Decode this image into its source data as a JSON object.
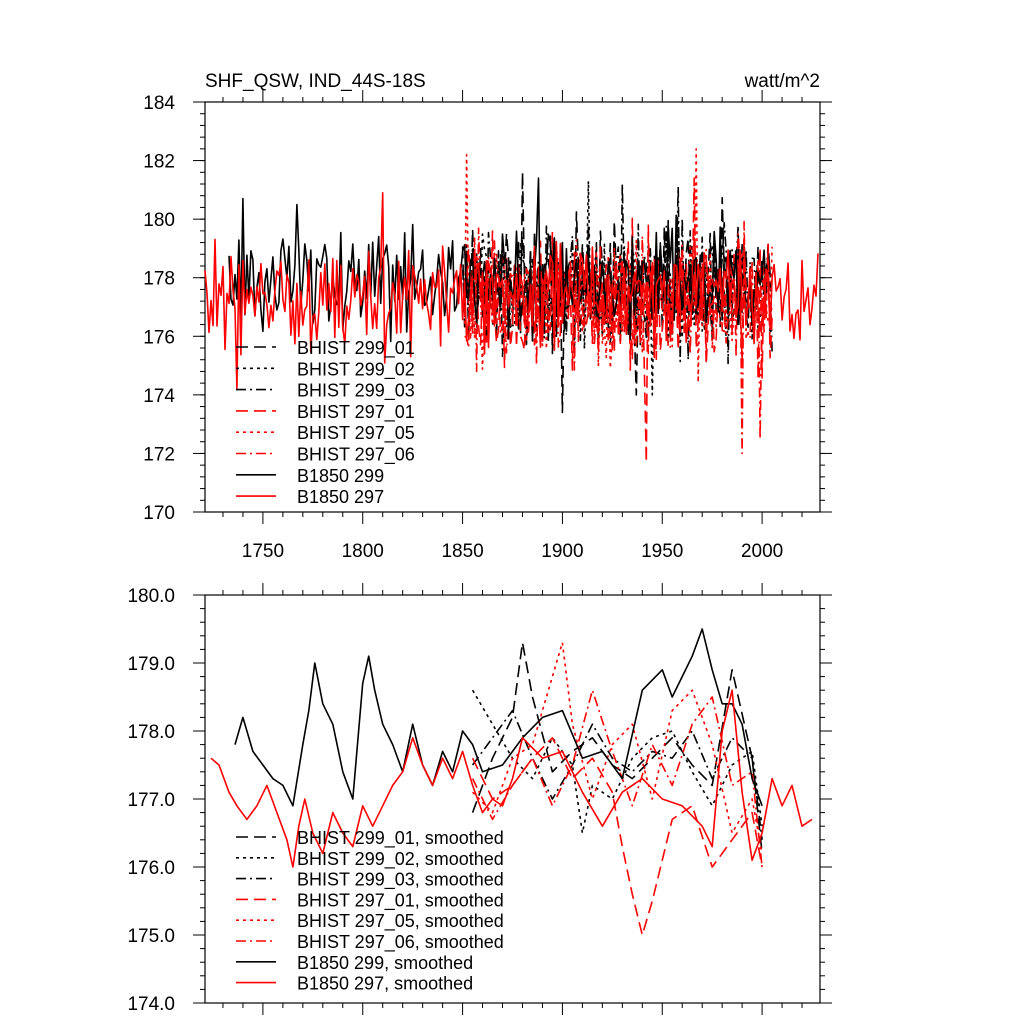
{
  "colors": {
    "black": "#000000",
    "red": "#ff0000"
  },
  "header": {
    "title": "SHF_QSW, IND_44S-18S",
    "units": "watt/m^2"
  },
  "chart_data": [
    {
      "type": "line",
      "title": "SHF_QSW, IND_44S-18S",
      "units": "watt/m^2",
      "xlim": [
        1721,
        2029
      ],
      "ylim": [
        170,
        184
      ],
      "x_ticks": [
        1750,
        1800,
        1850,
        1900,
        1950,
        2000
      ],
      "y_ticks": [
        170,
        172,
        174,
        176,
        178,
        180,
        182,
        184
      ],
      "y_tick_labels": [
        "170",
        "172",
        "174",
        "176",
        "178",
        "180",
        "182",
        "184"
      ],
      "grid": false,
      "legend_position": "bottom-left",
      "series": [
        {
          "name": "BHIST 299_01",
          "color": "#000000",
          "dash": "long-dash",
          "x_start": 1850,
          "x_end": 2005,
          "mean": 177.8,
          "amp": 1.7,
          "seed": 11,
          "extremes": [
            [
              1880,
              181.6
            ],
            [
              1900,
              173.4
            ],
            [
              1937,
              174.0
            ]
          ]
        },
        {
          "name": "BHIST 299_02",
          "color": "#000000",
          "dash": "dot",
          "x_start": 1850,
          "x_end": 2005,
          "mean": 177.7,
          "amp": 1.6,
          "seed": 12,
          "extremes": [
            [
              1913,
              181.3
            ],
            [
              1945,
              174.0
            ]
          ]
        },
        {
          "name": "BHIST 299_03",
          "color": "#000000",
          "dash": "dash-dot",
          "x_start": 1850,
          "x_end": 2005,
          "mean": 177.8,
          "amp": 1.6,
          "seed": 13,
          "extremes": [
            [
              1930,
              181.2
            ],
            [
              1958,
              181.1
            ]
          ]
        },
        {
          "name": "BHIST 297_01",
          "color": "#ff0000",
          "dash": "long-dash",
          "x_start": 1851,
          "x_end": 2005,
          "mean": 177.1,
          "amp": 1.7,
          "seed": 14,
          "extremes": [
            [
              1942,
              171.7
            ],
            [
              1966,
              181.4
            ]
          ]
        },
        {
          "name": "BHIST 297_05",
          "color": "#ff0000",
          "dash": "dot",
          "x_start": 1851,
          "x_end": 2005,
          "mean": 177.3,
          "amp": 1.6,
          "seed": 15,
          "extremes": [
            [
              1852,
              182.2
            ],
            [
              1967,
              182.4
            ]
          ]
        },
        {
          "name": "BHIST 297_06",
          "color": "#ff0000",
          "dash": "dash-dot",
          "x_start": 1851,
          "x_end": 2005,
          "mean": 177.2,
          "amp": 1.6,
          "seed": 16,
          "extremes": [
            [
              1990,
              172.0
            ],
            [
              1999,
              172.5
            ]
          ]
        },
        {
          "name": "B1850 299",
          "color": "#000000",
          "dash": "solid",
          "x_start": 1733,
          "x_end": 2002,
          "mean": 177.9,
          "amp": 1.4,
          "seed": 17,
          "extremes": [
            [
              1740,
              180.7
            ],
            [
              1767,
              180.5
            ],
            [
              1888,
              181.4
            ]
          ]
        },
        {
          "name": "B1850 297",
          "color": "#ff0000",
          "dash": "solid",
          "x_start": 1721,
          "x_end": 2028,
          "mean": 177.3,
          "amp": 1.3,
          "seed": 18,
          "extremes": [
            [
              1810,
              180.9
            ],
            [
              1737,
              174.2
            ]
          ]
        }
      ]
    },
    {
      "type": "line",
      "xlim": [
        1721,
        2029
      ],
      "ylim": [
        174.0,
        180.0
      ],
      "x_ticks": [
        1750,
        1800,
        1850,
        1900,
        1950,
        2000
      ],
      "y_ticks": [
        174.0,
        175.0,
        176.0,
        177.0,
        178.0,
        179.0,
        180.0
      ],
      "y_tick_labels": [
        "174.0",
        "175.0",
        "176.0",
        "177.0",
        "178.0",
        "179.0",
        "180.0"
      ],
      "grid": false,
      "legend_position": "bottom-left",
      "series": [
        {
          "name": "BHIST 299_01, smoothed",
          "color": "#000000",
          "dash": "long-dash",
          "x": [
            1855,
            1865,
            1875,
            1880,
            1885,
            1895,
            1905,
            1915,
            1925,
            1935,
            1945,
            1955,
            1965,
            1975,
            1985,
            1995,
            2000
          ],
          "y": [
            176.8,
            177.6,
            178.2,
            179.3,
            178.5,
            177.4,
            177.7,
            177.9,
            177.5,
            177.3,
            177.6,
            177.9,
            177.5,
            177.2,
            178.9,
            177.6,
            176.2
          ]
        },
        {
          "name": "BHIST 299_02, smoothed",
          "color": "#000000",
          "dash": "dot",
          "x": [
            1855,
            1865,
            1875,
            1885,
            1895,
            1905,
            1910,
            1915,
            1925,
            1935,
            1945,
            1955,
            1965,
            1975,
            1985,
            1995,
            2000
          ],
          "y": [
            178.6,
            178.1,
            177.6,
            177.3,
            177.9,
            177.5,
            176.5,
            177.2,
            177.0,
            177.6,
            177.9,
            178.0,
            177.4,
            176.9,
            177.5,
            177.7,
            176.6
          ]
        },
        {
          "name": "BHIST 299_03, smoothed",
          "color": "#000000",
          "dash": "dash-dot",
          "x": [
            1855,
            1865,
            1875,
            1885,
            1895,
            1905,
            1915,
            1925,
            1935,
            1945,
            1955,
            1965,
            1975,
            1985,
            1995,
            2000
          ],
          "y": [
            177.5,
            177.9,
            178.3,
            177.6,
            177.0,
            177.5,
            178.1,
            177.6,
            177.4,
            177.7,
            177.6,
            178.0,
            177.3,
            177.9,
            177.6,
            176.4
          ]
        },
        {
          "name": "BHIST 297_01, smoothed",
          "color": "#ff0000",
          "dash": "long-dash",
          "x": [
            1855,
            1865,
            1875,
            1885,
            1895,
            1905,
            1915,
            1925,
            1930,
            1935,
            1940,
            1945,
            1955,
            1965,
            1975,
            1985,
            1995,
            2000
          ],
          "y": [
            177.6,
            177.0,
            177.2,
            177.6,
            177.9,
            177.3,
            177.6,
            177.1,
            176.3,
            175.6,
            175.0,
            175.5,
            176.7,
            176.9,
            176.0,
            176.4,
            176.8,
            176.0
          ]
        },
        {
          "name": "BHIST 297_05, smoothed",
          "color": "#ff0000",
          "dash": "dot",
          "x": [
            1855,
            1865,
            1875,
            1885,
            1895,
            1900,
            1905,
            1915,
            1925,
            1935,
            1945,
            1955,
            1965,
            1975,
            1985,
            1995,
            2000
          ],
          "y": [
            177.1,
            176.8,
            177.6,
            177.8,
            178.8,
            179.3,
            178.1,
            177.0,
            177.8,
            178.1,
            177.0,
            178.3,
            178.6,
            177.8,
            176.5,
            177.0,
            176.2
          ]
        },
        {
          "name": "BHIST 297_06, smoothed",
          "color": "#ff0000",
          "dash": "dash-dot",
          "x": [
            1855,
            1865,
            1875,
            1885,
            1895,
            1905,
            1915,
            1925,
            1935,
            1945,
            1955,
            1965,
            1975,
            1985,
            1995,
            2000
          ],
          "y": [
            177.3,
            176.7,
            177.2,
            177.6,
            176.9,
            177.5,
            178.6,
            177.7,
            176.9,
            177.8,
            177.2,
            178.1,
            178.5,
            177.2,
            177.4,
            176.0
          ]
        },
        {
          "name": "B1850 299, smoothed",
          "color": "#000000",
          "dash": "solid",
          "x": [
            1736,
            1740,
            1745,
            1750,
            1755,
            1760,
            1765,
            1770,
            1773,
            1776,
            1780,
            1785,
            1790,
            1795,
            1800,
            1803,
            1806,
            1810,
            1815,
            1820,
            1825,
            1830,
            1835,
            1840,
            1845,
            1850,
            1855,
            1860,
            1870,
            1880,
            1890,
            1900,
            1910,
            1920,
            1930,
            1940,
            1950,
            1955,
            1960,
            1965,
            1970,
            1975,
            1980,
            1985,
            1990,
            1995,
            2000
          ],
          "y": [
            177.8,
            178.2,
            177.7,
            177.5,
            177.3,
            177.2,
            176.9,
            177.8,
            178.3,
            179.0,
            178.4,
            178.1,
            177.4,
            177.0,
            178.7,
            179.1,
            178.6,
            178.1,
            177.8,
            177.4,
            178.1,
            177.5,
            177.2,
            177.7,
            177.4,
            178.0,
            177.8,
            177.4,
            177.5,
            177.9,
            178.2,
            178.3,
            177.6,
            177.7,
            177.3,
            178.6,
            178.9,
            178.5,
            178.8,
            179.1,
            179.5,
            178.9,
            178.4,
            178.4,
            178.1,
            177.3,
            176.9
          ]
        },
        {
          "name": "B1850 297, smoothed",
          "color": "#ff0000",
          "dash": "solid",
          "x": [
            1724,
            1728,
            1733,
            1737,
            1742,
            1747,
            1752,
            1757,
            1762,
            1765,
            1768,
            1771,
            1775,
            1780,
            1785,
            1790,
            1795,
            1800,
            1805,
            1810,
            1815,
            1820,
            1825,
            1830,
            1835,
            1840,
            1845,
            1850,
            1855,
            1860,
            1865,
            1870,
            1875,
            1880,
            1890,
            1900,
            1910,
            1920,
            1930,
            1940,
            1950,
            1960,
            1970,
            1975,
            1980,
            1985,
            1990,
            1995,
            2000,
            2005,
            2010,
            2015,
            2020,
            2025
          ],
          "y": [
            177.6,
            177.5,
            177.1,
            176.9,
            176.7,
            176.9,
            177.2,
            176.8,
            176.4,
            176.0,
            176.6,
            177.0,
            176.5,
            176.2,
            176.8,
            176.5,
            176.3,
            176.9,
            176.6,
            176.9,
            177.2,
            177.4,
            177.9,
            177.5,
            177.2,
            177.6,
            177.3,
            177.7,
            177.2,
            176.8,
            177.0,
            176.9,
            177.3,
            177.9,
            177.6,
            177.7,
            177.1,
            176.6,
            177.1,
            177.3,
            177.0,
            176.9,
            176.6,
            176.3,
            178.0,
            178.6,
            177.1,
            176.1,
            176.5,
            177.3,
            176.9,
            177.2,
            176.6,
            176.7
          ]
        }
      ]
    }
  ]
}
